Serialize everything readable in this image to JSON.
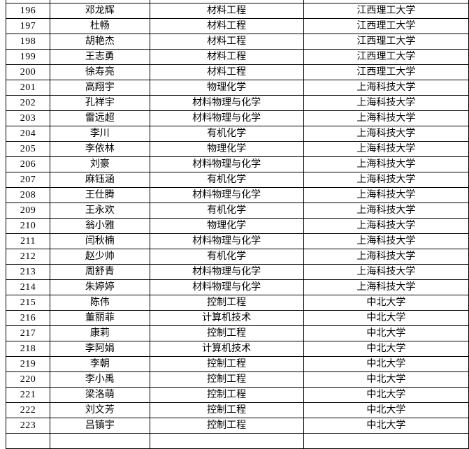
{
  "colors": {
    "background": "#ffffff",
    "border": "#000000",
    "text": "#000000"
  },
  "table": {
    "rows": [
      {
        "no": "196",
        "name": "邓龙辉",
        "major": "材料工程",
        "university": "江西理工大学"
      },
      {
        "no": "197",
        "name": "杜畅",
        "major": "材料工程",
        "university": "江西理工大学"
      },
      {
        "no": "198",
        "name": "胡艳杰",
        "major": "材料工程",
        "university": "江西理工大学"
      },
      {
        "no": "199",
        "name": "王志勇",
        "major": "材料工程",
        "university": "江西理工大学"
      },
      {
        "no": "200",
        "name": "徐寿亮",
        "major": "材料工程",
        "university": "江西理工大学"
      },
      {
        "no": "201",
        "name": "高翔宇",
        "major": "物理化学",
        "university": "上海科技大学"
      },
      {
        "no": "202",
        "name": "孔祥宇",
        "major": "材料物理与化学",
        "university": "上海科技大学"
      },
      {
        "no": "203",
        "name": "雷远超",
        "major": "材料物理与化学",
        "university": "上海科技大学"
      },
      {
        "no": "204",
        "name": "李川",
        "major": "有机化学",
        "university": "上海科技大学"
      },
      {
        "no": "205",
        "name": "李依林",
        "major": "物理化学",
        "university": "上海科技大学"
      },
      {
        "no": "206",
        "name": "刘豪",
        "major": "材料物理与化学",
        "university": "上海科技大学"
      },
      {
        "no": "207",
        "name": "麻钰涵",
        "major": "有机化学",
        "university": "上海科技大学"
      },
      {
        "no": "208",
        "name": "王仕腾",
        "major": "材料物理与化学",
        "university": "上海科技大学"
      },
      {
        "no": "209",
        "name": "王永欢",
        "major": "有机化学",
        "university": "上海科技大学"
      },
      {
        "no": "210",
        "name": "翁小雅",
        "major": "物理化学",
        "university": "上海科技大学"
      },
      {
        "no": "211",
        "name": "闫秋楠",
        "major": "材料物理与化学",
        "university": "上海科技大学"
      },
      {
        "no": "212",
        "name": "赵少帅",
        "major": "有机化学",
        "university": "上海科技大学"
      },
      {
        "no": "213",
        "name": "周舒青",
        "major": "材料物理与化学",
        "university": "上海科技大学"
      },
      {
        "no": "214",
        "name": "朱婷婷",
        "major": "材料物理与化学",
        "university": "上海科技大学"
      },
      {
        "no": "215",
        "name": "陈伟",
        "major": "控制工程",
        "university": "中北大学"
      },
      {
        "no": "216",
        "name": "董丽菲",
        "major": "计算机技术",
        "university": "中北大学"
      },
      {
        "no": "217",
        "name": "康莉",
        "major": "控制工程",
        "university": "中北大学"
      },
      {
        "no": "218",
        "name": "李阿娟",
        "major": "计算机技术",
        "university": "中北大学"
      },
      {
        "no": "219",
        "name": "李朝",
        "major": "控制工程",
        "university": "中北大学"
      },
      {
        "no": "220",
        "name": "李小禹",
        "major": "控制工程",
        "university": "中北大学"
      },
      {
        "no": "221",
        "name": "梁洛萌",
        "major": "控制工程",
        "university": "中北大学"
      },
      {
        "no": "222",
        "name": "刘文芳",
        "major": "控制工程",
        "university": "中北大学"
      },
      {
        "no": "223",
        "name": "吕镇宇",
        "major": "控制工程",
        "university": "中北大学"
      }
    ]
  }
}
